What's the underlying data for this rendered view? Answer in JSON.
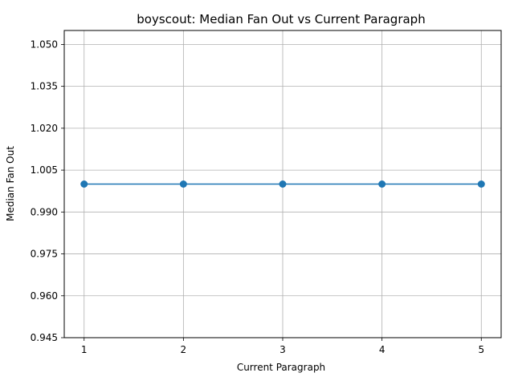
{
  "chart_data": {
    "type": "line",
    "title": "boyscout: Median Fan Out vs Current Paragraph",
    "xlabel": "Current Paragraph",
    "ylabel": "Median Fan Out",
    "x": [
      1,
      2,
      3,
      4,
      5
    ],
    "series": [
      {
        "values": [
          1.0,
          1.0,
          1.0,
          1.0,
          1.0
        ],
        "color": "#1f77b4",
        "marker": "circle"
      }
    ],
    "xticks": [
      "1",
      "2",
      "3",
      "4",
      "5"
    ],
    "yticks": [
      "0.945",
      "0.960",
      "0.975",
      "0.990",
      "1.005",
      "1.020",
      "1.035",
      "1.050"
    ],
    "xlim": [
      0.8,
      5.2
    ],
    "ylim": [
      0.945,
      1.055
    ],
    "grid": true
  }
}
